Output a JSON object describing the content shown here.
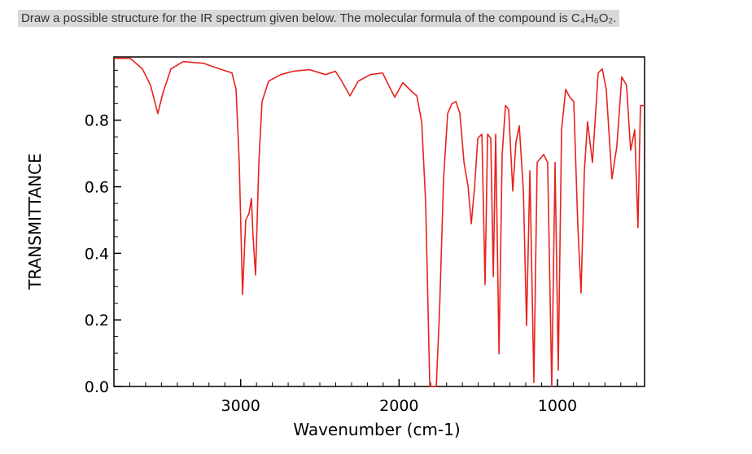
{
  "chart_data": {
    "type": "line",
    "title": "Draw a possible structure for the IR spectrum given below. The molecular formula of the compound is C₄H₆O₂.",
    "x_label": "Wavenumber (cm-1)",
    "y_label": "TRANSMITTANCE",
    "color": "#e8221e",
    "xlim": [
      3800,
      450
    ],
    "ylim": [
      0,
      0.99
    ],
    "xticks": [
      3000,
      2000,
      1000
    ],
    "xminorticks": [
      3700,
      3600,
      3500,
      3400,
      3300,
      3200,
      3100,
      2900,
      2800,
      2700,
      2600,
      2500,
      2400,
      2300,
      2200,
      2100,
      1900,
      1800,
      1700,
      1600,
      1500,
      1400,
      1300,
      1200,
      1100,
      900,
      800,
      700,
      600,
      500
    ],
    "yticks": [
      {
        "value": 0,
        "label": "0.0"
      },
      0.2,
      0.4,
      0.6,
      0.8
    ],
    "yminorticks": [
      0.05,
      0.1,
      0.15,
      0.25,
      0.3,
      0.35,
      0.45,
      0.5,
      0.55,
      0.65,
      0.7,
      0.75,
      0.85,
      0.9,
      0.95
    ],
    "x": [
      3800,
      3697,
      3620,
      3569,
      3523,
      3492,
      3440,
      3363,
      3235,
      3132,
      3055,
      3029,
      3009,
      2988,
      2968,
      2947,
      2932,
      2922,
      2906,
      2885,
      2865,
      2824,
      2747,
      2669,
      2567,
      2464,
      2402,
      2361,
      2310,
      2258,
      2181,
      2104,
      2053,
      2027,
      1976,
      1924,
      1888,
      1857,
      1832,
      1806,
      1765,
      1744,
      1719,
      1693,
      1667,
      1641,
      1616,
      1590,
      1564,
      1544,
      1523,
      1503,
      1477,
      1457,
      1441,
      1421,
      1405,
      1390,
      1369,
      1349,
      1328,
      1308,
      1282,
      1262,
      1241,
      1215,
      1195,
      1174,
      1149,
      1128,
      1087,
      1062,
      1036,
      1015,
      995,
      974,
      948,
      922,
      897,
      871,
      851,
      830,
      810,
      779,
      743,
      717,
      692,
      656,
      625,
      594,
      564,
      538,
      512,
      492,
      476,
      450
    ],
    "values": [
      0.986,
      0.986,
      0.954,
      0.905,
      0.82,
      0.88,
      0.954,
      0.976,
      0.971,
      0.954,
      0.942,
      0.893,
      0.673,
      0.276,
      0.5,
      0.52,
      0.565,
      0.453,
      0.335,
      0.673,
      0.856,
      0.917,
      0.937,
      0.947,
      0.952,
      0.937,
      0.947,
      0.917,
      0.873,
      0.917,
      0.937,
      0.942,
      0.893,
      0.869,
      0.913,
      0.888,
      0.873,
      0.795,
      0.551,
      0.0,
      0.0,
      0.232,
      0.624,
      0.82,
      0.849,
      0.856,
      0.82,
      0.673,
      0.6,
      0.489,
      0.6,
      0.746,
      0.758,
      0.306,
      0.758,
      0.746,
      0.33,
      0.758,
      0.098,
      0.697,
      0.844,
      0.832,
      0.587,
      0.734,
      0.783,
      0.587,
      0.183,
      0.648,
      0.012,
      0.673,
      0.697,
      0.673,
      0.0,
      0.673,
      0.049,
      0.771,
      0.893,
      0.869,
      0.856,
      0.477,
      0.281,
      0.648,
      0.795,
      0.673,
      0.942,
      0.954,
      0.893,
      0.624,
      0.722,
      0.93,
      0.905,
      0.71,
      0.771,
      0.477,
      0.844,
      0.844
    ]
  }
}
